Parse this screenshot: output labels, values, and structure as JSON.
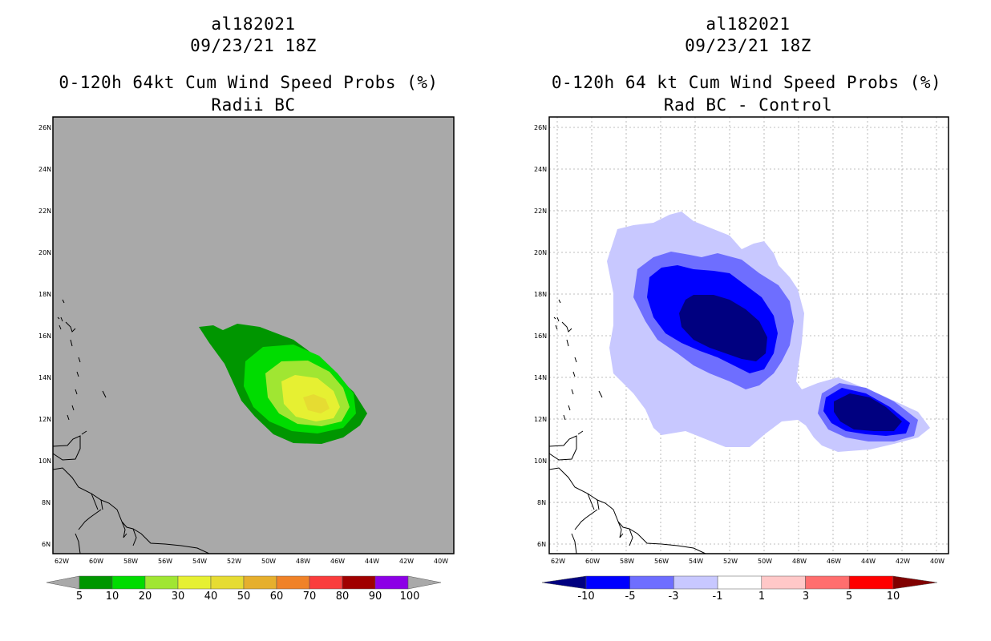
{
  "left_panel": {
    "storm_id": "al182021",
    "datetime": "09/23/21 18Z",
    "title": "0-120h 64kt Cum Wind Speed Probs (%)",
    "subtitle": "Radii BC",
    "background_color": "#a9a9a9",
    "lat_labels": [
      "26N",
      "24N",
      "22N",
      "20N",
      "18N",
      "16N",
      "14N",
      "12N",
      "10N",
      "8N",
      "6N"
    ],
    "lon_labels": [
      "62W",
      "60W",
      "58W",
      "56W",
      "54W",
      "52W",
      "50W",
      "48W",
      "46W",
      "44W",
      "42W",
      "40W"
    ],
    "colorbar": {
      "colors": [
        "#009600",
        "#00dc00",
        "#a0e632",
        "#e6f032",
        "#e6dc32",
        "#e6af2d",
        "#f08228",
        "#fa3c3c",
        "#a00000",
        "#8c00e6"
      ],
      "end_colors": [
        "#a9a9a9",
        "#a9a9a9"
      ],
      "labels": [
        "5",
        "10",
        "20",
        "30",
        "40",
        "50",
        "60",
        "70",
        "80",
        "90",
        "100"
      ]
    },
    "contours": [
      {
        "level": 5,
        "color": "#009600"
      },
      {
        "level": 10,
        "color": "#00dc00"
      },
      {
        "level": 20,
        "color": "#a0e632"
      },
      {
        "level": 30,
        "color": "#e6f032"
      },
      {
        "level": 40,
        "color": "#e6dc32"
      }
    ]
  },
  "right_panel": {
    "storm_id": "al182021",
    "datetime": "09/23/21 18Z",
    "title": "0-120h 64 kt Cum Wind Speed Probs (%)",
    "subtitle": "Rad BC - Control",
    "background_color": "#ffffff",
    "lat_labels": [
      "26N",
      "24N",
      "22N",
      "20N",
      "18N",
      "16N",
      "14N",
      "12N",
      "10N",
      "8N",
      "6N"
    ],
    "lon_labels": [
      "62W",
      "60W",
      "58W",
      "56W",
      "54W",
      "52W",
      "50W",
      "48W",
      "46W",
      "44W",
      "42W",
      "40W"
    ],
    "colorbar": {
      "colors": [
        "#0000ff",
        "#6e6eff",
        "#c8c8ff",
        "#ffffff",
        "#ffc8c8",
        "#ff6e6e",
        "#ff0000"
      ],
      "end_colors": [
        "#000080",
        "#800000"
      ],
      "labels": [
        "-10",
        "-5",
        "-3",
        "-1",
        "1",
        "3",
        "5",
        "10"
      ]
    },
    "contours": [
      {
        "level": -1,
        "color": "#c8c8ff"
      },
      {
        "level": -3,
        "color": "#6e6eff"
      },
      {
        "level": -5,
        "color": "#0000ff"
      },
      {
        "level": -10,
        "color": "#000080"
      }
    ]
  }
}
